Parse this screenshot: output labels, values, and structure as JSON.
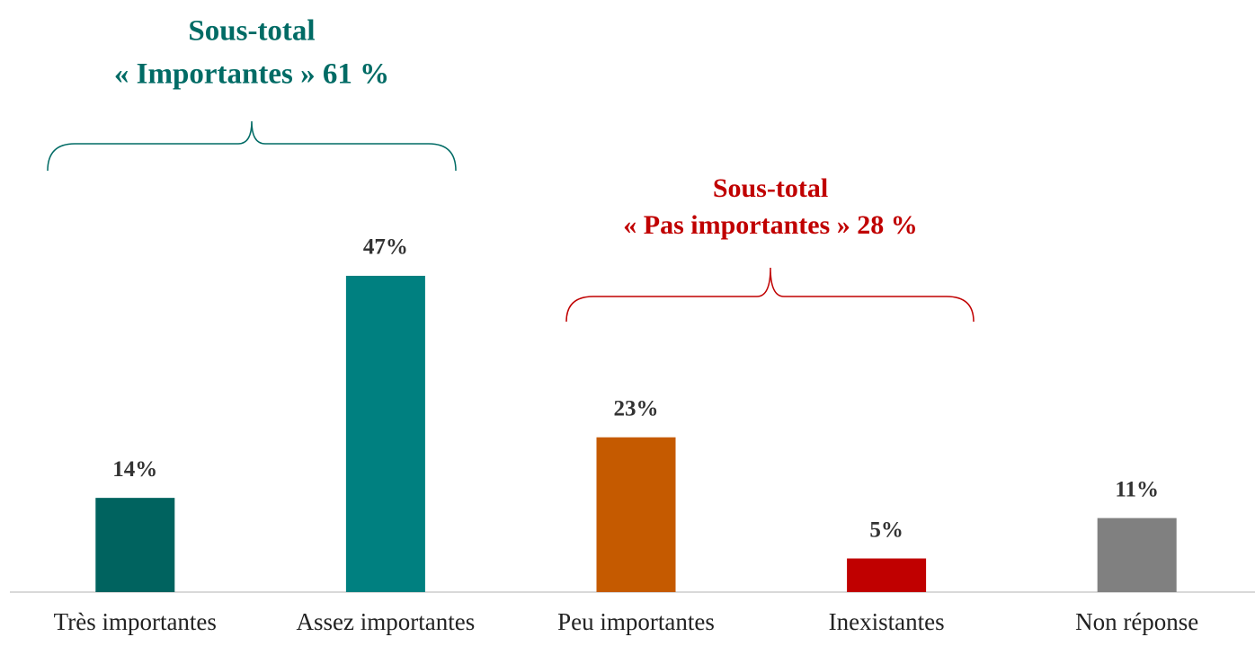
{
  "chart_data": {
    "type": "bar",
    "categories": [
      "Très importantes",
      "Assez importantes",
      "Peu importantes",
      "Inexistantes",
      "Non réponse"
    ],
    "values": [
      14,
      47,
      23,
      5,
      11
    ],
    "value_labels": [
      "14%",
      "47%",
      "23%",
      "5%",
      "11%"
    ],
    "colors": [
      "#00635f",
      "#008080",
      "#c55a00",
      "#c00000",
      "#808080"
    ],
    "annotations": [
      {
        "lines": [
          "Sous-total",
          "« Importantes » 61 %"
        ],
        "color": "#006b65"
      },
      {
        "lines": [
          "Sous-total",
          "« Pas importantes » 28 %"
        ],
        "color": "#c00000"
      }
    ]
  }
}
